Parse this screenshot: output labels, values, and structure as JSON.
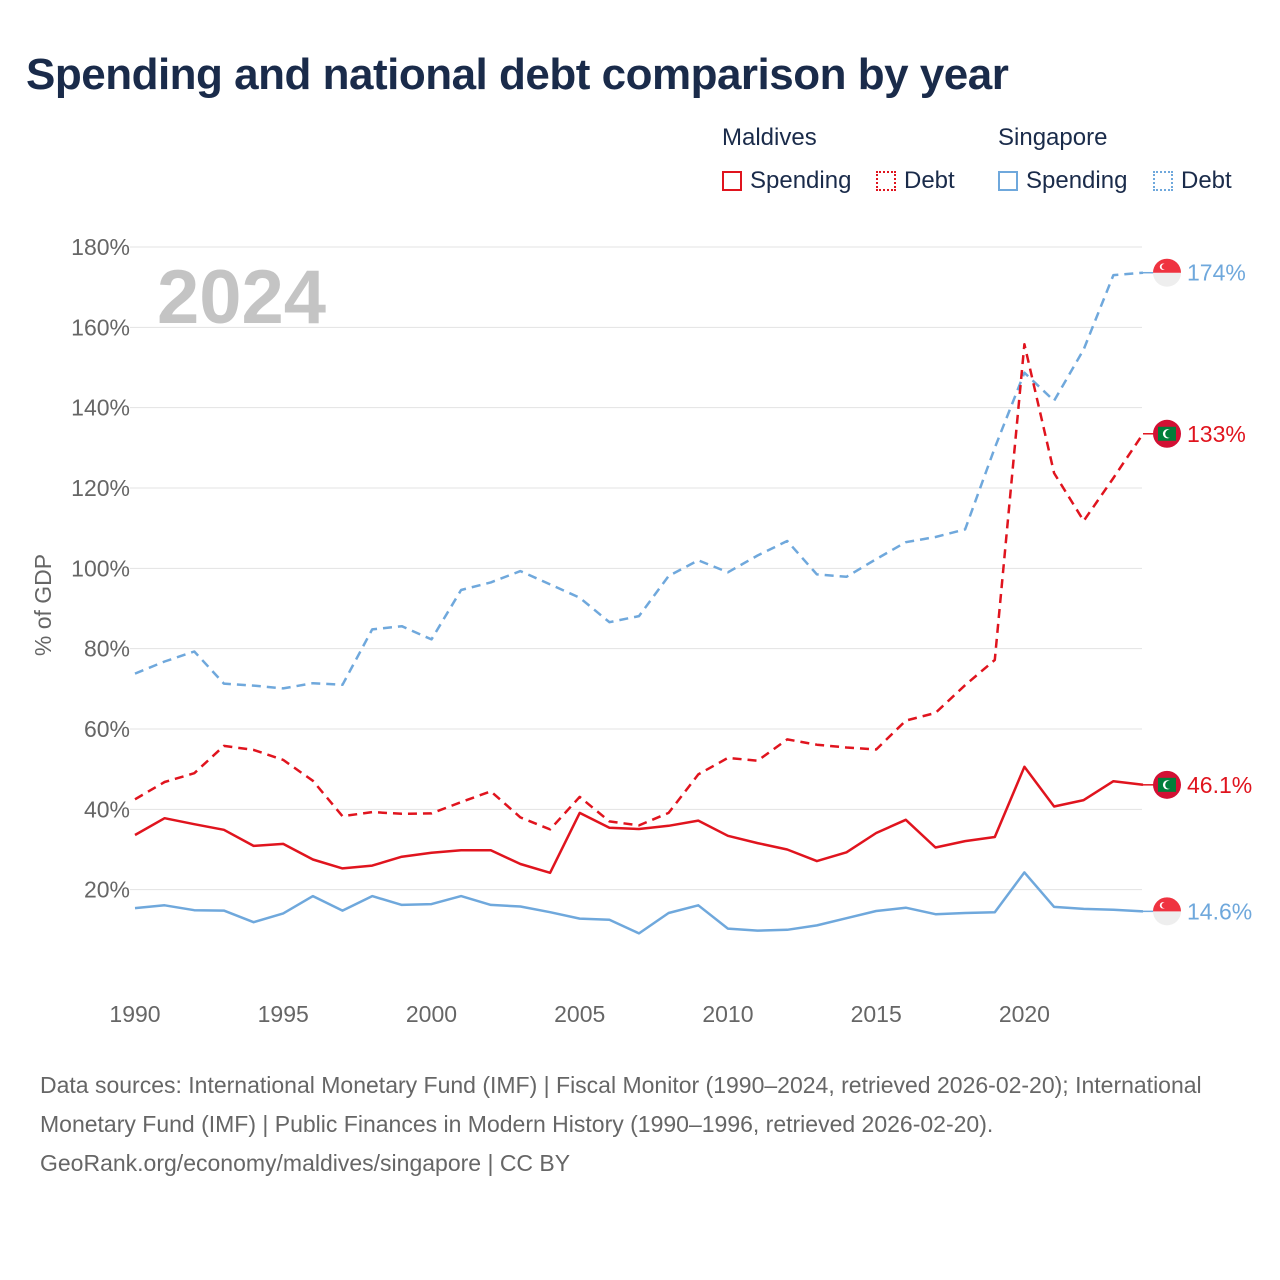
{
  "title": "Spending and national debt comparison by year",
  "legend": {
    "groups": [
      {
        "name": "Maldives",
        "items": [
          {
            "label": "Spending",
            "style": "solid"
          },
          {
            "label": "Debt",
            "style": "dotted"
          }
        ],
        "color": "#e0141e"
      },
      {
        "name": "Singapore",
        "items": [
          {
            "label": "Spending",
            "style": "solid"
          },
          {
            "label": "Debt",
            "style": "dotted"
          }
        ],
        "color": "#6fa8dc"
      }
    ]
  },
  "footer": {
    "sources": "Data sources: International Monetary Fund (IMF) | Fiscal Monitor (1990–2024, retrieved 2026-02-20); International Monetary Fund (IMF) | Public Finances in Modern History (1990–1996, retrieved 2026-02-20).",
    "credit": "GeoRank.org/economy/maldives/singapore | CC BY"
  },
  "chart_data": {
    "type": "line",
    "title": "Spending and national debt comparison by year",
    "year_label": "2024",
    "xlabel": "",
    "ylabel": "% of GDP",
    "xlim": [
      1990,
      2024
    ],
    "ylim": [
      0,
      180
    ],
    "x_ticks": [
      1990,
      1995,
      2000,
      2005,
      2010,
      2015,
      2020
    ],
    "y_ticks": [
      20,
      40,
      60,
      80,
      100,
      120,
      140,
      160,
      180
    ],
    "y_tick_labels": [
      "20%",
      "40%",
      "60%",
      "80%",
      "100%",
      "120%",
      "140%",
      "160%",
      "180%"
    ],
    "grid": true,
    "x": [
      1990,
      1991,
      1992,
      1993,
      1994,
      1995,
      1996,
      1997,
      1998,
      1999,
      2000,
      2001,
      2002,
      2003,
      2004,
      2005,
      2006,
      2007,
      2008,
      2009,
      2010,
      2011,
      2012,
      2013,
      2014,
      2015,
      2016,
      2017,
      2018,
      2019,
      2020,
      2021,
      2022,
      2023,
      2024
    ],
    "series": [
      {
        "name": "Singapore Debt",
        "country": "Singapore",
        "metric": "Debt",
        "color": "#6fa8dc",
        "dash": "dashed",
        "end_label": "174%",
        "flag": "singapore",
        "values": [
          73.8,
          76.8,
          79.3,
          71.3,
          70.8,
          70.1,
          71.4,
          71.0,
          84.8,
          85.6,
          82.3,
          94.6,
          96.5,
          99.3,
          96.0,
          92.7,
          86.6,
          88.1,
          98.1,
          102.0,
          99.0,
          103.2,
          106.8,
          98.5,
          97.9,
          102.3,
          106.5,
          107.8,
          109.7,
          130.0,
          148.7,
          141.7,
          154.5,
          173.0,
          173.6
        ]
      },
      {
        "name": "Maldives Debt",
        "country": "Maldives",
        "metric": "Debt",
        "color": "#e0141e",
        "dash": "dashed",
        "end_label": "133%",
        "flag": "maldives",
        "values": [
          42.5,
          46.8,
          49.0,
          55.8,
          54.8,
          52.3,
          47.1,
          38.3,
          39.3,
          38.9,
          39.0,
          41.8,
          44.5,
          38.0,
          35.0,
          43.1,
          37.0,
          36.0,
          39.1,
          48.7,
          52.8,
          52.1,
          57.4,
          56.1,
          55.4,
          54.9,
          62.1,
          64.0,
          70.9,
          77.2,
          155.8,
          123.7,
          111.8,
          122.5,
          133.5
        ]
      },
      {
        "name": "Maldives Spending",
        "country": "Maldives",
        "metric": "Spending",
        "color": "#e0141e",
        "dash": "solid",
        "end_label": "46.1%",
        "flag": "maldives",
        "values": [
          33.6,
          37.8,
          36.3,
          34.9,
          30.9,
          31.4,
          27.5,
          25.3,
          26.0,
          28.2,
          29.2,
          29.8,
          29.8,
          26.4,
          24.2,
          39.1,
          35.4,
          35.1,
          35.9,
          37.2,
          33.4,
          31.6,
          30.0,
          27.1,
          29.3,
          34.1,
          37.4,
          30.5,
          32.1,
          33.1,
          50.6,
          40.7,
          42.3,
          47.0,
          46.1
        ]
      },
      {
        "name": "Singapore Spending",
        "country": "Singapore",
        "metric": "Spending",
        "color": "#6fa8dc",
        "dash": "solid",
        "end_label": "14.6%",
        "flag": "singapore",
        "values": [
          15.4,
          16.1,
          14.9,
          14.8,
          11.9,
          14.1,
          18.4,
          14.8,
          18.4,
          16.2,
          16.4,
          18.4,
          16.2,
          15.8,
          14.4,
          12.8,
          12.5,
          9.1,
          14.2,
          16.1,
          10.3,
          9.8,
          10.0,
          11.1,
          12.9,
          14.7,
          15.5,
          13.9,
          14.2,
          14.4,
          24.3,
          15.7,
          15.2,
          15.0,
          14.6
        ]
      }
    ]
  }
}
